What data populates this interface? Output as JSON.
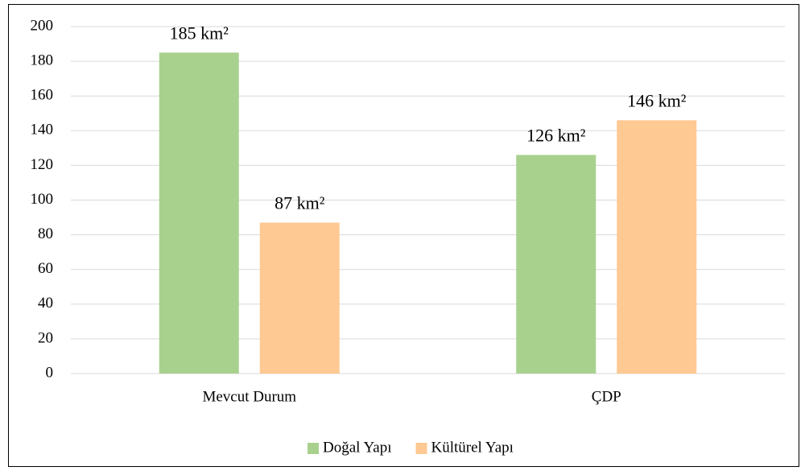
{
  "chart_data": {
    "type": "bar",
    "categories": [
      "Mevcut Durum",
      "ÇDP"
    ],
    "series": [
      {
        "name": "Doğal Yapı",
        "color": "#a9d18e",
        "values": [
          185,
          126
        ],
        "value_labels": [
          "185 km²",
          "126 km²"
        ]
      },
      {
        "name": "Kültürel Yapı",
        "color": "#ffc993",
        "values": [
          87,
          146
        ],
        "value_labels": [
          "87 km²",
          "146 km²"
        ]
      }
    ],
    "ylim": [
      0,
      200
    ],
    "yticks": [
      0,
      20,
      40,
      60,
      80,
      100,
      120,
      140,
      160,
      180,
      200
    ],
    "grid": true,
    "legend": "bottom"
  }
}
